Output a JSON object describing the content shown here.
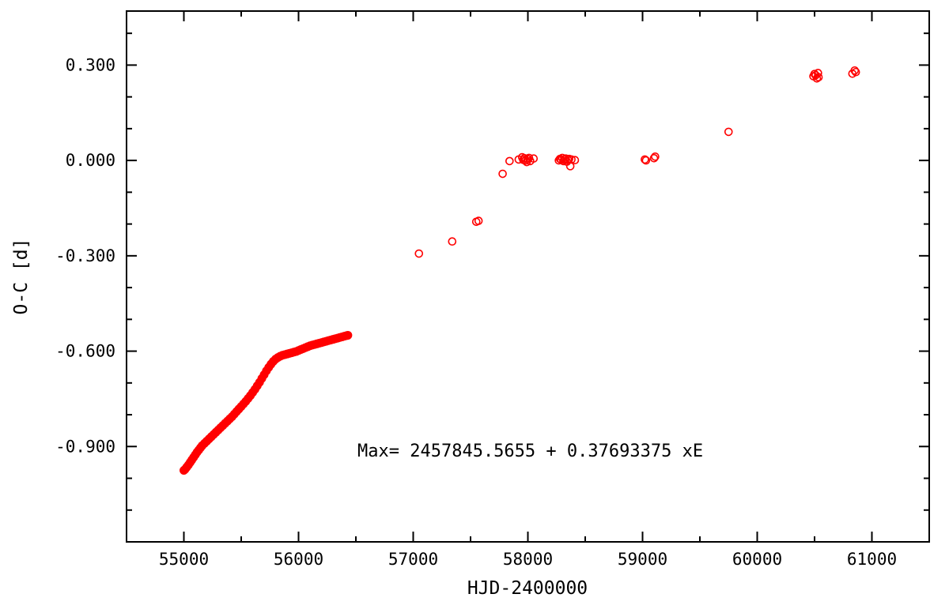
{
  "chart_data": {
    "type": "scatter",
    "title": "",
    "xlabel": "HJD-2400000",
    "ylabel": "O-C [d]",
    "xlim": [
      54500,
      61500
    ],
    "ylim": [
      -1.2,
      0.47
    ],
    "x_ticks": [
      55000,
      56000,
      57000,
      58000,
      59000,
      60000,
      61000
    ],
    "x_tick_labels": [
      "55000",
      "56000",
      "57000",
      "58000",
      "59000",
      "60000",
      "61000"
    ],
    "x_minor_step": 500,
    "y_ticks": [
      -0.9,
      -0.6,
      -0.3,
      0.0,
      0.3
    ],
    "y_tick_labels": [
      "-0.900",
      "-0.600",
      "-0.300",
      "0.000",
      "0.300"
    ],
    "y_minor_step": 0.1,
    "grid": false,
    "marker_color": "#ff0000",
    "annotation": "Max= 2457845.5655 + 0.37693375 xE",
    "series": [
      {
        "marker": "filled-circle",
        "points": [
          [
            55000,
            -0.975
          ],
          [
            55010,
            -0.972
          ],
          [
            55025,
            -0.965
          ],
          [
            55040,
            -0.958
          ],
          [
            55055,
            -0.95
          ],
          [
            55070,
            -0.942
          ],
          [
            55085,
            -0.934
          ],
          [
            55100,
            -0.926
          ],
          [
            55115,
            -0.918
          ],
          [
            55130,
            -0.911
          ],
          [
            55145,
            -0.904
          ],
          [
            55160,
            -0.897
          ],
          [
            55180,
            -0.89
          ],
          [
            55200,
            -0.883
          ],
          [
            55220,
            -0.876
          ],
          [
            55240,
            -0.869
          ],
          [
            55260,
            -0.862
          ],
          [
            55280,
            -0.855
          ],
          [
            55300,
            -0.848
          ],
          [
            55320,
            -0.841
          ],
          [
            55340,
            -0.834
          ],
          [
            55360,
            -0.827
          ],
          [
            55380,
            -0.82
          ],
          [
            55400,
            -0.813
          ],
          [
            55420,
            -0.806
          ],
          [
            55440,
            -0.798
          ],
          [
            55460,
            -0.79
          ],
          [
            55480,
            -0.782
          ],
          [
            55500,
            -0.774
          ],
          [
            55520,
            -0.766
          ],
          [
            55540,
            -0.758
          ],
          [
            55560,
            -0.749
          ],
          [
            55580,
            -0.74
          ],
          [
            55600,
            -0.73
          ],
          [
            55620,
            -0.72
          ],
          [
            55640,
            -0.709
          ],
          [
            55660,
            -0.698
          ],
          [
            55680,
            -0.686
          ],
          [
            55700,
            -0.674
          ],
          [
            55720,
            -0.662
          ],
          [
            55740,
            -0.651
          ],
          [
            55760,
            -0.641
          ],
          [
            55780,
            -0.632
          ],
          [
            55800,
            -0.625
          ],
          [
            55820,
            -0.62
          ],
          [
            55840,
            -0.616
          ],
          [
            55860,
            -0.613
          ],
          [
            55880,
            -0.611
          ],
          [
            55900,
            -0.609
          ],
          [
            55920,
            -0.607
          ],
          [
            55940,
            -0.605
          ],
          [
            55960,
            -0.603
          ],
          [
            55980,
            -0.601
          ],
          [
            56000,
            -0.598
          ],
          [
            56020,
            -0.595
          ],
          [
            56040,
            -0.592
          ],
          [
            56060,
            -0.589
          ],
          [
            56080,
            -0.586
          ],
          [
            56100,
            -0.583
          ],
          [
            56120,
            -0.581
          ],
          [
            56140,
            -0.579
          ],
          [
            56160,
            -0.577
          ],
          [
            56180,
            -0.575
          ],
          [
            56200,
            -0.573
          ],
          [
            56220,
            -0.571
          ],
          [
            56240,
            -0.569
          ],
          [
            56260,
            -0.567
          ],
          [
            56280,
            -0.565
          ],
          [
            56300,
            -0.563
          ],
          [
            56320,
            -0.561
          ],
          [
            56340,
            -0.559
          ],
          [
            56360,
            -0.557
          ],
          [
            56380,
            -0.555
          ],
          [
            56400,
            -0.553
          ],
          [
            56420,
            -0.551
          ],
          [
            56430,
            -0.55
          ]
        ]
      },
      {
        "marker": "open-circle",
        "points": [
          [
            57050,
            -0.293
          ],
          [
            57340,
            -0.255
          ],
          [
            57550,
            -0.193
          ],
          [
            57570,
            -0.19
          ],
          [
            57780,
            -0.042
          ],
          [
            57840,
            -0.002
          ],
          [
            57920,
            0.003
          ],
          [
            57950,
            0.01
          ],
          [
            57960,
            0.002
          ],
          [
            57970,
            0.007
          ],
          [
            57980,
            0.0
          ],
          [
            57990,
            -0.005
          ],
          [
            58000,
            0.004
          ],
          [
            58010,
            0.008
          ],
          [
            58020,
            -0.002
          ],
          [
            58050,
            0.006
          ],
          [
            58270,
            0.0
          ],
          [
            58280,
            0.005
          ],
          [
            58290,
            0.002
          ],
          [
            58300,
            0.008
          ],
          [
            58310,
            -0.002
          ],
          [
            58320,
            0.003
          ],
          [
            58330,
            0.006
          ],
          [
            58340,
            -0.004
          ],
          [
            58350,
            0.002
          ],
          [
            58360,
            0.005
          ],
          [
            58370,
            -0.018
          ],
          [
            58380,
            0.003
          ],
          [
            58410,
            0.001
          ],
          [
            59020,
            0.003
          ],
          [
            59030,
            0.0
          ],
          [
            59100,
            0.007
          ],
          [
            59110,
            0.012
          ],
          [
            59750,
            0.09
          ],
          [
            60490,
            0.265
          ],
          [
            60500,
            0.272
          ],
          [
            60510,
            0.268
          ],
          [
            60520,
            0.258
          ],
          [
            60530,
            0.275
          ],
          [
            60535,
            0.262
          ],
          [
            60830,
            0.273
          ],
          [
            60850,
            0.283
          ],
          [
            60860,
            0.278
          ]
        ]
      }
    ]
  }
}
